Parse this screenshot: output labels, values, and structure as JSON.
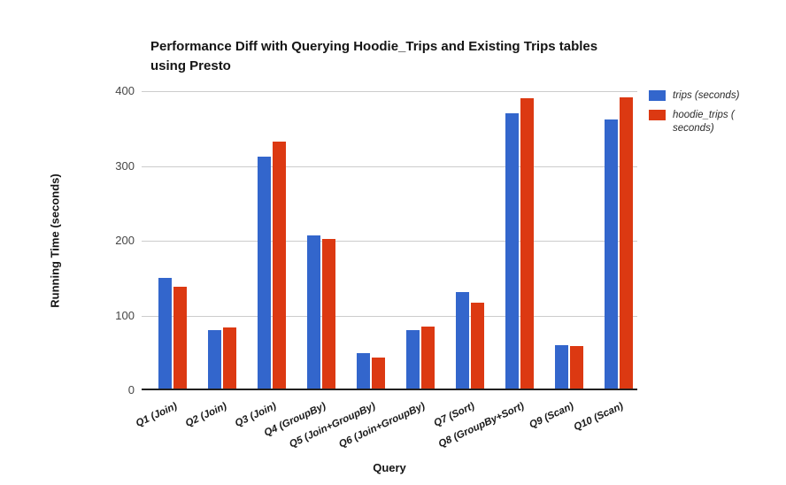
{
  "title": {
    "line1": "Performance Diff with Querying Hoodie_Trips and Existing Trips tables",
    "line2": "using Presto"
  },
  "axes": {
    "y_title": "Running Time (seconds)",
    "x_title": "Query"
  },
  "legend": {
    "items": [
      {
        "label": "trips (seconds)",
        "color": "#3366CC"
      },
      {
        "label": "hoodie_trips ( seconds)",
        "color": "#DC3912"
      }
    ]
  },
  "colors": {
    "series_blue": "#3366CC",
    "series_red": "#DC3912",
    "gridline": "#cccccc",
    "axis_line": "#212121"
  },
  "chart_data": {
    "type": "bar",
    "title": "Performance Diff with Querying Hoodie_Trips and Existing Trips tables using Presto",
    "xlabel": "Query",
    "ylabel": "Running Time (seconds)",
    "ylim": [
      0,
      400
    ],
    "yticks": [
      0,
      100,
      200,
      300,
      400
    ],
    "grid": true,
    "legend_position": "right",
    "categories": [
      "Q1 (Join)",
      "Q2 (Join)",
      "Q3 (Join)",
      "Q4 (GroupBy)",
      "Q5 (Join+GroupBy)",
      "Q6 (Join+GroupBy)",
      "Q7 (Sort)",
      "Q8 (GroupBy+Sort)",
      "Q9 (Scan)",
      "Q10 (Scan)"
    ],
    "series": [
      {
        "name": "trips (seconds)",
        "color": "#3366CC",
        "values": [
          150,
          81,
          313,
          207,
          50,
          81,
          131,
          370,
          60,
          362
        ]
      },
      {
        "name": "hoodie_trips (seconds)",
        "color": "#DC3912",
        "values": [
          138,
          84,
          332,
          202,
          44,
          85,
          117,
          390,
          59,
          392
        ]
      }
    ]
  }
}
